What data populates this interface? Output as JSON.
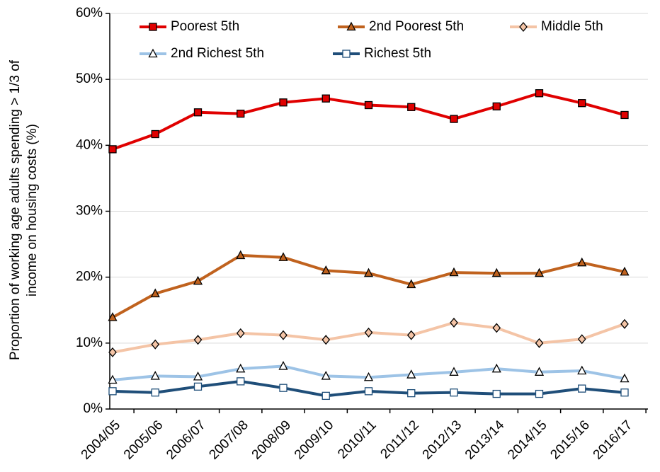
{
  "chart_data": {
    "type": "line",
    "ylabel": [
      "Proportion of working age adults spending > 1/3 of",
      "income on housing costs (%)"
    ],
    "categories": [
      "2004/05",
      "2005/06",
      "2006/07",
      "2007/08",
      "2008/09",
      "2009/10",
      "2010/11",
      "2011/12",
      "2012/13",
      "2013/14",
      "2014/15",
      "2015/16",
      "2016/17"
    ],
    "series": [
      {
        "name": "Poorest 5th",
        "color": "#e00000",
        "marker": "square",
        "marker_fill": "#e00000",
        "values": [
          39.4,
          41.7,
          45.0,
          44.8,
          46.5,
          47.1,
          46.1,
          45.8,
          44.0,
          45.9,
          47.9,
          46.4,
          44.6
        ]
      },
      {
        "name": "2nd Poorest 5th",
        "color": "#c0621e",
        "marker": "triangle",
        "marker_fill": "#c0621e",
        "values": [
          13.9,
          17.5,
          19.4,
          23.3,
          23.0,
          21.0,
          20.6,
          18.9,
          20.7,
          20.6,
          20.6,
          22.2,
          20.8
        ]
      },
      {
        "name": "Middle 5th",
        "color": "#f4c4a6",
        "marker": "diamond",
        "marker_fill": "#f4c4a6",
        "values": [
          8.6,
          9.8,
          10.5,
          11.5,
          11.2,
          10.5,
          11.6,
          11.2,
          13.1,
          12.3,
          10.0,
          10.6,
          12.9
        ]
      },
      {
        "name": "2nd Richest 5th",
        "color": "#9dc3e6",
        "marker": "triangle",
        "marker_fill": "#ffffff",
        "values": [
          4.4,
          5.0,
          4.9,
          6.1,
          6.5,
          5.0,
          4.8,
          5.2,
          5.6,
          6.1,
          5.6,
          5.8,
          4.6
        ]
      },
      {
        "name": "Richest 5th",
        "color": "#1f4e79",
        "marker": "square",
        "marker_fill": "#ffffff",
        "values": [
          2.7,
          2.5,
          3.4,
          4.2,
          3.2,
          2.0,
          2.7,
          2.4,
          2.5,
          2.3,
          2.3,
          3.1,
          2.5
        ]
      }
    ],
    "ylim": [
      0,
      60
    ],
    "yticks": [
      {
        "value": 0,
        "label": "0%"
      },
      {
        "value": 10,
        "label": "10%"
      },
      {
        "value": 20,
        "label": "20%"
      },
      {
        "value": 30,
        "label": "30%"
      },
      {
        "value": 40,
        "label": "40%"
      },
      {
        "value": 50,
        "label": "50%"
      },
      {
        "value": 60,
        "label": "60%"
      }
    ],
    "grid": true,
    "legend": "top"
  }
}
